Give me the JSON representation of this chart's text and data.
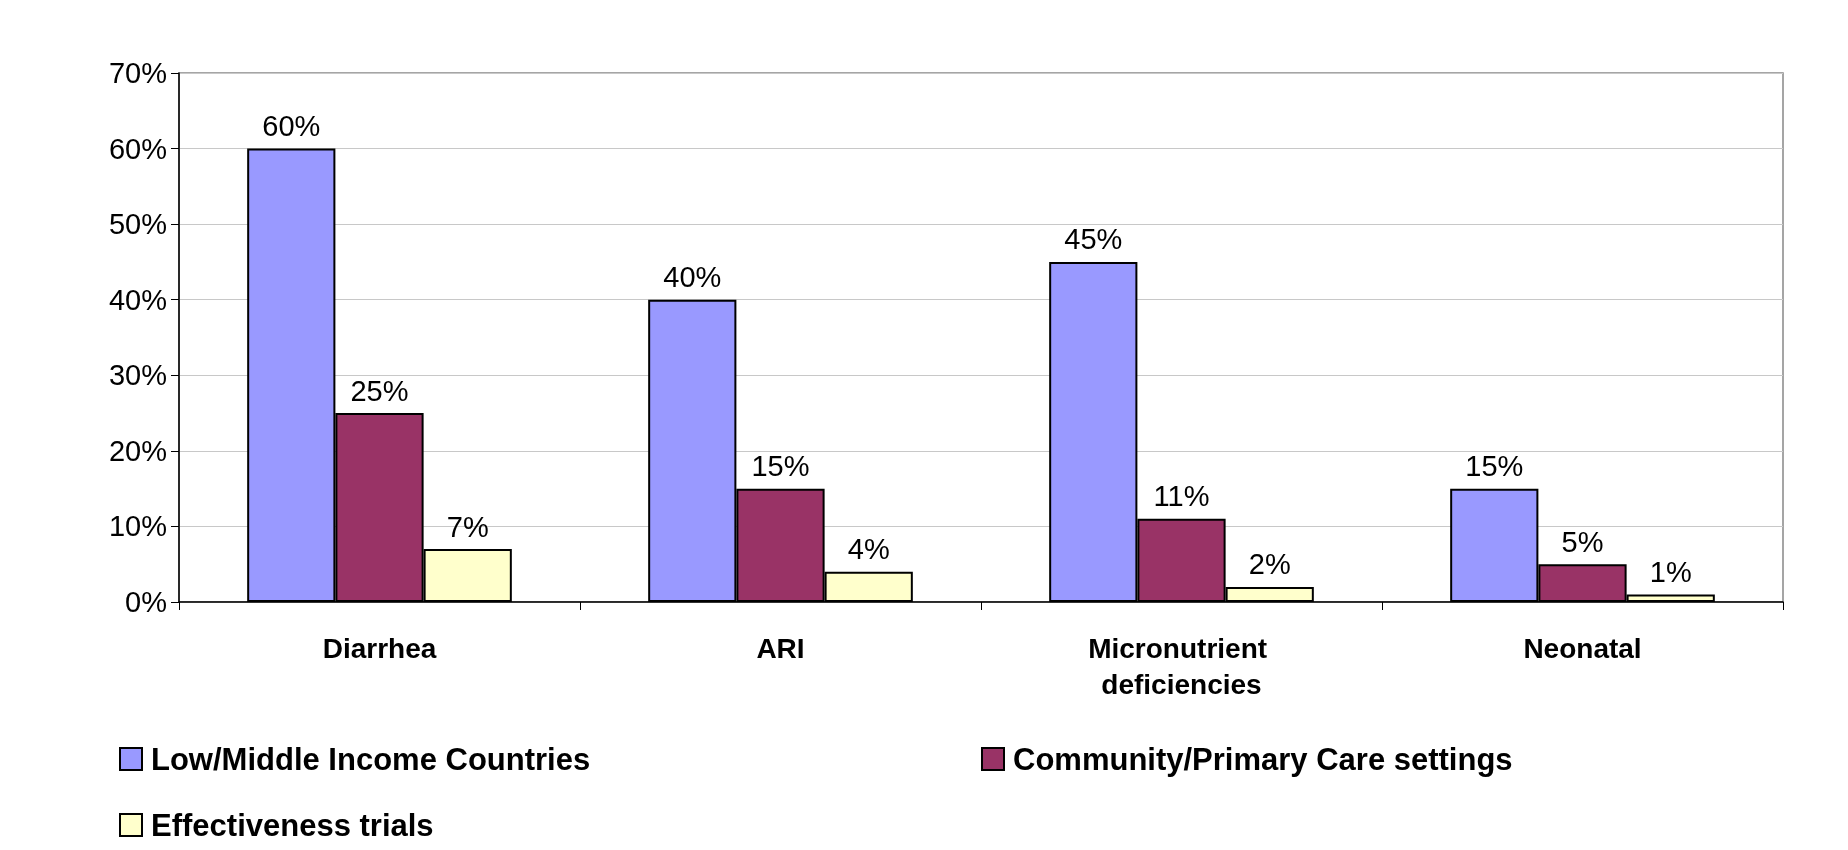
{
  "chart_data": {
    "type": "bar",
    "categories": [
      "Diarrhea",
      "ARI",
      "Micronutrient deficiencies",
      "Neonatal"
    ],
    "series": [
      {
        "name": "Low/Middle Income Countries",
        "color": "#9999ff",
        "values": [
          60,
          40,
          45,
          15
        ],
        "value_labels": [
          "60%",
          "40%",
          "45%",
          "15%"
        ]
      },
      {
        "name": "Community/Primary Care settings",
        "color": "#993366",
        "values": [
          25,
          15,
          11,
          5
        ],
        "value_labels": [
          "25%",
          "15%",
          "11%",
          "5%"
        ]
      },
      {
        "name": "Effectiveness trials",
        "color": "#ffffcc",
        "values": [
          7,
          4,
          2,
          1
        ],
        "value_labels": [
          "7%",
          "4%",
          "2%",
          "1%"
        ]
      }
    ],
    "ylim": [
      0,
      70
    ],
    "yticks": [
      {
        "value": 0,
        "label": "0%"
      },
      {
        "value": 10,
        "label": "10%"
      },
      {
        "value": 20,
        "label": "20%"
      },
      {
        "value": 30,
        "label": "30%"
      },
      {
        "value": 40,
        "label": "40%"
      },
      {
        "value": 50,
        "label": "50%"
      },
      {
        "value": 60,
        "label": "60%"
      },
      {
        "value": 70,
        "label": "70%"
      }
    ],
    "grid": "y",
    "legend": "bottom"
  }
}
